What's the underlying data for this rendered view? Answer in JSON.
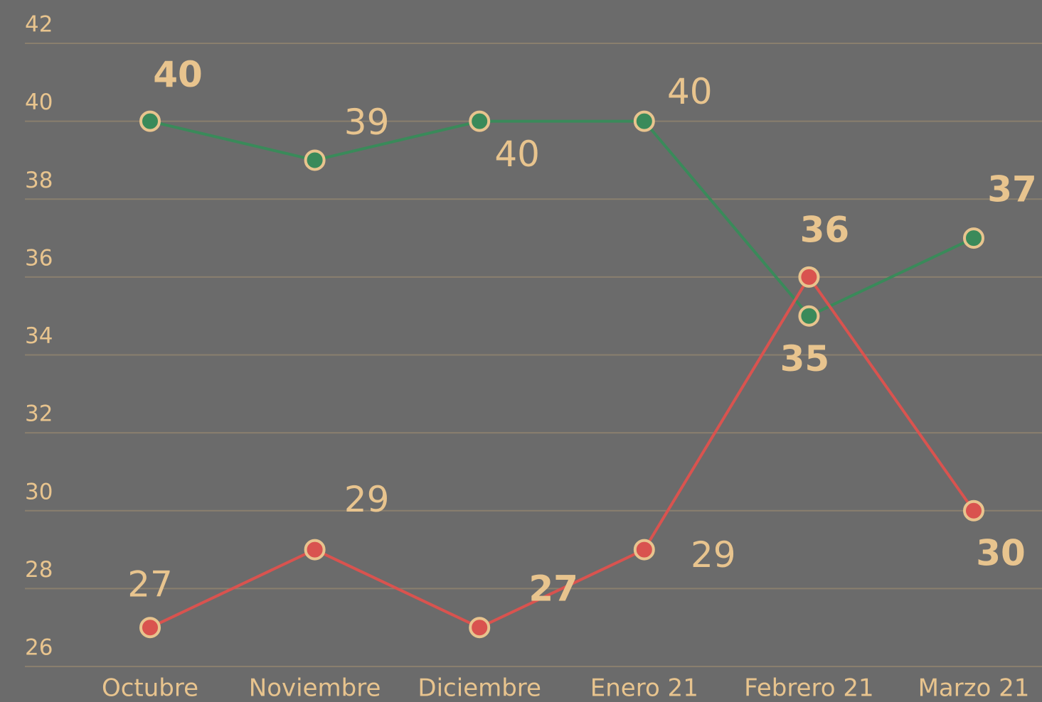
{
  "chart_data": {
    "type": "line",
    "categories": [
      "Octubre",
      "Noviembre",
      "Diciembre",
      "Enero 21",
      "Febrero 21",
      "Marzo 21"
    ],
    "series": [
      {
        "color": "#3a8a5a",
        "values": [
          40,
          39,
          40,
          40,
          35,
          37
        ]
      },
      {
        "color": "#d9534f",
        "values": [
          27,
          29,
          27,
          29,
          36,
          30
        ]
      }
    ],
    "ylim": [
      26,
      42
    ],
    "yticks": [
      26,
      28,
      30,
      32,
      34,
      36,
      38,
      40,
      42
    ],
    "grid": true,
    "label_color": "#e8c48e"
  }
}
